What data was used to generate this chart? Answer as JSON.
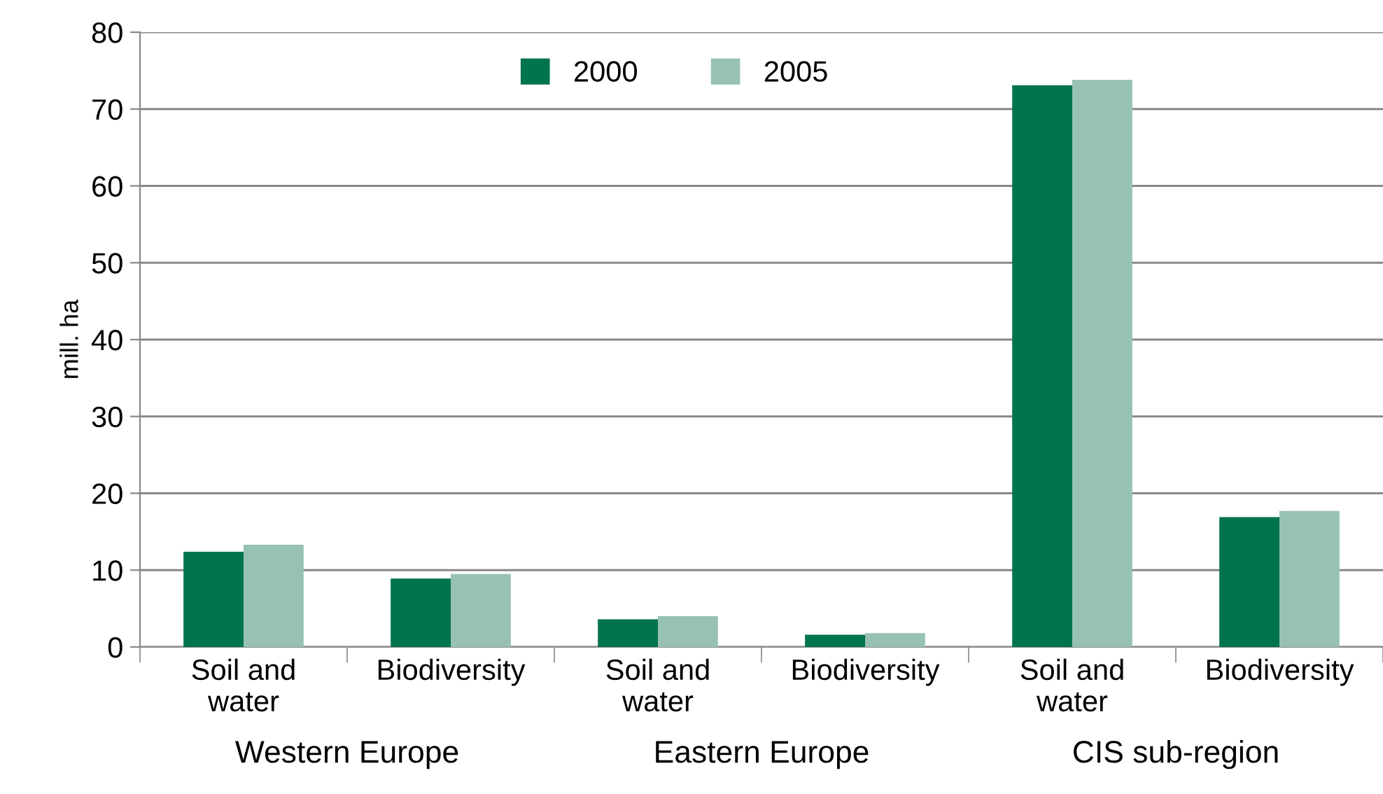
{
  "chart_data": {
    "type": "bar",
    "ylabel": "mill. ha",
    "categories": [
      "Soil and\nwater",
      "Biodiversity",
      "Soil and\nwater",
      "Biodiversity",
      "Soil and\nwater",
      "Biodiversity"
    ],
    "series": [
      {
        "name": "2000",
        "color": "#00734f",
        "values": [
          12.4,
          8.9,
          3.6,
          1.6,
          73.1,
          16.9
        ]
      },
      {
        "name": "2005",
        "color": "#97c2b1",
        "values": [
          13.3,
          9.5,
          4.0,
          1.8,
          73.8,
          17.7
        ]
      }
    ],
    "annotations": [
      "Western Europe",
      "Eastern Europe",
      "CIS sub-region"
    ],
    "ylim": [
      0,
      80
    ],
    "yticks": [
      0,
      10,
      20,
      30,
      40,
      50,
      60,
      70,
      80
    ],
    "grid": "y",
    "legend": "top"
  }
}
